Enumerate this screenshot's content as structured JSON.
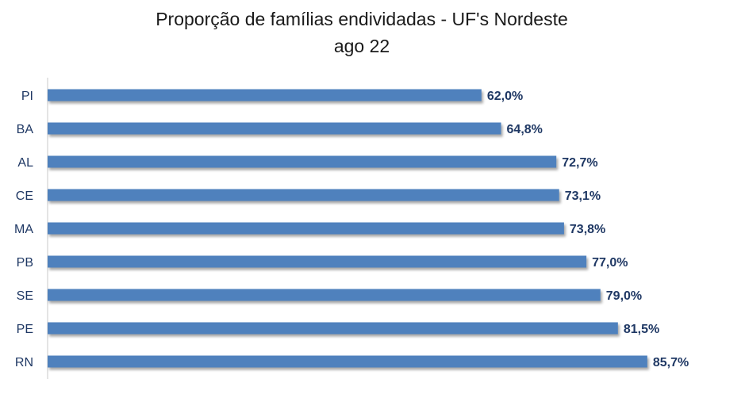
{
  "chart_data": {
    "type": "bar",
    "orientation": "horizontal",
    "title": "Proporção de famílias endividadas - UF's Nordeste",
    "subtitle": "ago 22",
    "categories": [
      "PI",
      "BA",
      "AL",
      "CE",
      "MA",
      "PB",
      "SE",
      "PE",
      "RN"
    ],
    "values": [
      62.0,
      64.8,
      72.7,
      73.1,
      73.8,
      77.0,
      79.0,
      81.5,
      85.7
    ],
    "value_labels": [
      "62,0%",
      "64,8%",
      "72,7%",
      "73,1%",
      "73,8%",
      "77,0%",
      "79,0%",
      "81,5%",
      "85,7%"
    ],
    "xlim": [
      0,
      100
    ],
    "grid": false,
    "legend": "none",
    "bar_color": "#4f81bd"
  }
}
